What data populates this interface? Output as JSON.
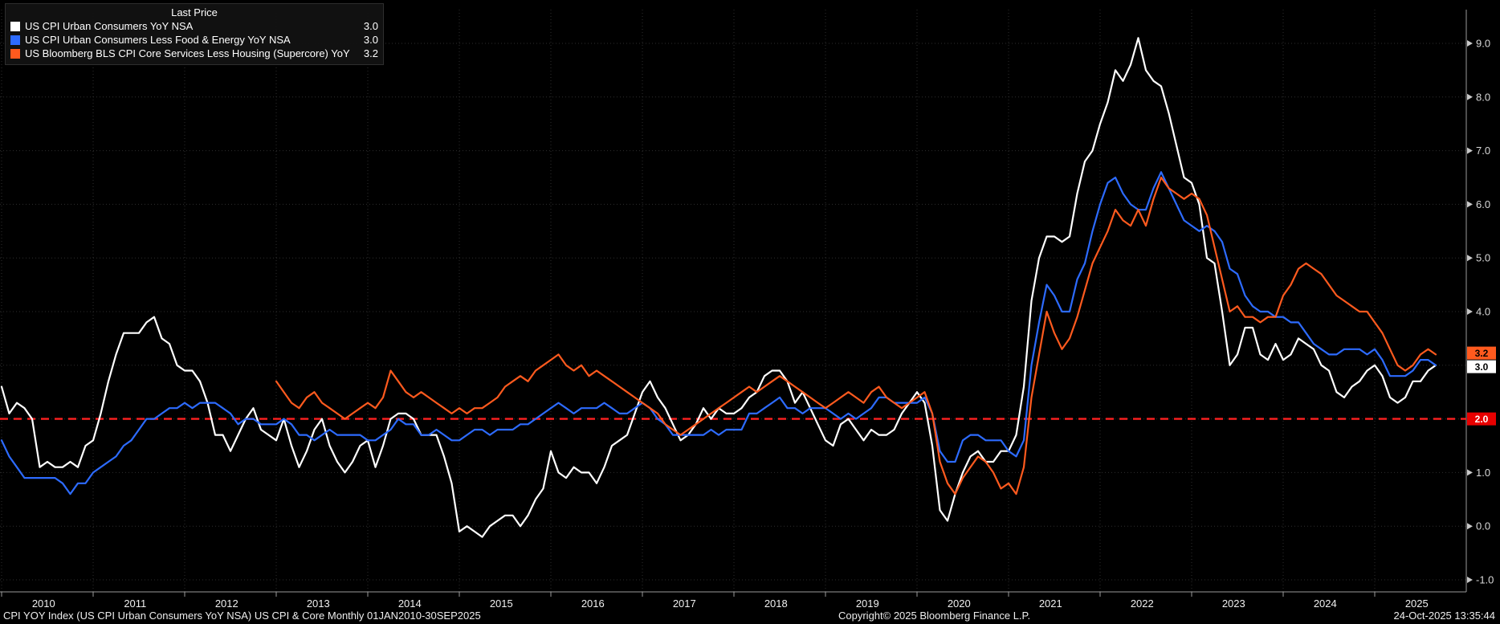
{
  "legend": {
    "header": "Last Price",
    "series": [
      {
        "label": "US CPI Urban Consumers YoY NSA",
        "value": "3.0",
        "color": "#ffffff"
      },
      {
        "label": "US CPI Urban Consumers Less Food & Energy YoY NSA",
        "value": "3.0",
        "color": "#2d6bff"
      },
      {
        "label": "US Bloomberg BLS CPI Core Services Less Housing (Supercore) YoY",
        "value": "3.2",
        "color": "#ff5a1e"
      }
    ]
  },
  "axis": {
    "y_ticks": [
      "9.0",
      "8.0",
      "7.0",
      "6.0",
      "5.0",
      "4.0",
      "3.0",
      "2.0",
      "1.0",
      "0.0",
      "-1.0"
    ],
    "x_ticks": [
      "2010",
      "2011",
      "2012",
      "2013",
      "2014",
      "2015",
      "2016",
      "2017",
      "2018",
      "2019",
      "2020",
      "2021",
      "2022",
      "2023",
      "2024",
      "2025"
    ]
  },
  "price_badges": [
    {
      "value": "3.2",
      "bg": "#ff5a1e",
      "fg": "#000000"
    },
    {
      "value": "3.0",
      "bg": "#ffffff",
      "fg": "#000000"
    },
    {
      "value": "2.0",
      "bg": "#e80000",
      "fg": "#ffffff"
    }
  ],
  "footer": {
    "left": "CPI YOY Index (US CPI Urban Consumers YoY NSA) US CPI & Core Monthly 01JAN2010-30SEP2025",
    "center": "Copyright© 2025 Bloomberg Finance L.P.",
    "right": "24-Oct-2025 13:35:44"
  },
  "chart_data": {
    "type": "line",
    "title": "US CPI & Core Monthly 01JAN2010-30SEP2025",
    "x_start": "2010-01",
    "x_end": "2025-09",
    "frequency": "monthly",
    "ylim": [
      -1.0,
      9.6
    ],
    "grid": true,
    "legend_position": "top-left",
    "reference_line": {
      "value": 2.0,
      "color": "#ff2020",
      "style": "dashed"
    },
    "series": [
      {
        "name": "US CPI Urban Consumers YoY NSA",
        "color": "#ffffff",
        "last_price": 3.0,
        "start_index": 0,
        "values": [
          2.6,
          2.1,
          2.3,
          2.2,
          2.0,
          1.1,
          1.2,
          1.1,
          1.1,
          1.2,
          1.1,
          1.5,
          1.6,
          2.1,
          2.7,
          3.2,
          3.6,
          3.6,
          3.6,
          3.8,
          3.9,
          3.5,
          3.4,
          3.0,
          2.9,
          2.9,
          2.7,
          2.3,
          1.7,
          1.7,
          1.4,
          1.7,
          2.0,
          2.2,
          1.8,
          1.7,
          1.6,
          2.0,
          1.5,
          1.1,
          1.4,
          1.8,
          2.0,
          1.5,
          1.2,
          1.0,
          1.2,
          1.5,
          1.6,
          1.1,
          1.5,
          2.0,
          2.1,
          2.1,
          2.0,
          1.7,
          1.7,
          1.7,
          1.3,
          0.8,
          -0.1,
          0.0,
          -0.1,
          -0.2,
          0.0,
          0.1,
          0.2,
          0.2,
          0.0,
          0.2,
          0.5,
          0.7,
          1.4,
          1.0,
          0.9,
          1.1,
          1.0,
          1.0,
          0.8,
          1.1,
          1.5,
          1.6,
          1.7,
          2.1,
          2.5,
          2.7,
          2.4,
          2.2,
          1.9,
          1.6,
          1.7,
          1.9,
          2.2,
          2.0,
          2.2,
          2.1,
          2.1,
          2.2,
          2.4,
          2.5,
          2.8,
          2.9,
          2.9,
          2.7,
          2.3,
          2.5,
          2.2,
          1.9,
          1.6,
          1.5,
          1.9,
          2.0,
          1.8,
          1.6,
          1.8,
          1.7,
          1.7,
          1.8,
          2.1,
          2.3,
          2.5,
          2.3,
          1.5,
          0.3,
          0.1,
          0.6,
          1.0,
          1.3,
          1.4,
          1.2,
          1.2,
          1.4,
          1.4,
          1.7,
          2.6,
          4.2,
          5.0,
          5.4,
          5.4,
          5.3,
          5.4,
          6.2,
          6.8,
          7.0,
          7.5,
          7.9,
          8.5,
          8.3,
          8.6,
          9.1,
          8.5,
          8.3,
          8.2,
          7.7,
          7.1,
          6.5,
          6.4,
          6.0,
          5.0,
          4.9,
          4.0,
          3.0,
          3.2,
          3.7,
          3.7,
          3.2,
          3.1,
          3.4,
          3.1,
          3.2,
          3.5,
          3.4,
          3.3,
          3.0,
          2.9,
          2.5,
          2.4,
          2.6,
          2.7,
          2.9,
          3.0,
          2.8,
          2.4,
          2.3,
          2.4,
          2.7,
          2.7,
          2.9,
          3.0
        ]
      },
      {
        "name": "US CPI Urban Consumers Less Food & Energy YoY NSA",
        "color": "#2d6bff",
        "last_price": 3.0,
        "start_index": 0,
        "values": [
          1.6,
          1.3,
          1.1,
          0.9,
          0.9,
          0.9,
          0.9,
          0.9,
          0.8,
          0.6,
          0.8,
          0.8,
          1.0,
          1.1,
          1.2,
          1.3,
          1.5,
          1.6,
          1.8,
          2.0,
          2.0,
          2.1,
          2.2,
          2.2,
          2.3,
          2.2,
          2.3,
          2.3,
          2.3,
          2.2,
          2.1,
          1.9,
          2.0,
          2.0,
          1.9,
          1.9,
          1.9,
          2.0,
          1.9,
          1.7,
          1.7,
          1.6,
          1.7,
          1.8,
          1.7,
          1.7,
          1.7,
          1.7,
          1.6,
          1.6,
          1.7,
          1.8,
          2.0,
          1.9,
          1.9,
          1.7,
          1.7,
          1.8,
          1.7,
          1.6,
          1.6,
          1.7,
          1.8,
          1.8,
          1.7,
          1.8,
          1.8,
          1.8,
          1.9,
          1.9,
          2.0,
          2.1,
          2.2,
          2.3,
          2.2,
          2.1,
          2.2,
          2.2,
          2.2,
          2.3,
          2.2,
          2.1,
          2.1,
          2.2,
          2.3,
          2.2,
          2.0,
          1.9,
          1.7,
          1.7,
          1.7,
          1.7,
          1.7,
          1.8,
          1.7,
          1.8,
          1.8,
          1.8,
          2.1,
          2.1,
          2.2,
          2.3,
          2.4,
          2.2,
          2.2,
          2.1,
          2.2,
          2.2,
          2.2,
          2.1,
          2.0,
          2.1,
          2.0,
          2.1,
          2.2,
          2.4,
          2.4,
          2.3,
          2.3,
          2.3,
          2.3,
          2.4,
          2.1,
          1.4,
          1.2,
          1.2,
          1.6,
          1.7,
          1.7,
          1.6,
          1.6,
          1.6,
          1.4,
          1.3,
          1.6,
          3.0,
          3.8,
          4.5,
          4.3,
          4.0,
          4.0,
          4.6,
          4.9,
          5.5,
          6.0,
          6.4,
          6.5,
          6.2,
          6.0,
          5.9,
          5.9,
          6.3,
          6.6,
          6.3,
          6.0,
          5.7,
          5.6,
          5.5,
          5.6,
          5.5,
          5.3,
          4.8,
          4.7,
          4.3,
          4.1,
          4.0,
          4.0,
          3.9,
          3.9,
          3.8,
          3.8,
          3.6,
          3.4,
          3.3,
          3.2,
          3.2,
          3.3,
          3.3,
          3.3,
          3.2,
          3.3,
          3.1,
          2.8,
          2.8,
          2.8,
          2.9,
          3.1,
          3.1,
          3.0
        ]
      },
      {
        "name": "US Bloomberg BLS CPI Core Services Less Housing (Supercore) YoY",
        "color": "#ff5a1e",
        "last_price": 3.2,
        "start_index": 36,
        "values": [
          2.7,
          2.5,
          2.3,
          2.2,
          2.4,
          2.5,
          2.3,
          2.2,
          2.1,
          2.0,
          2.1,
          2.2,
          2.3,
          2.2,
          2.4,
          2.9,
          2.7,
          2.5,
          2.4,
          2.5,
          2.4,
          2.3,
          2.2,
          2.1,
          2.2,
          2.1,
          2.2,
          2.2,
          2.3,
          2.4,
          2.6,
          2.7,
          2.8,
          2.7,
          2.9,
          3.0,
          3.1,
          3.2,
          3.0,
          2.9,
          3.0,
          2.8,
          2.9,
          2.8,
          2.7,
          2.6,
          2.5,
          2.4,
          2.3,
          2.2,
          2.1,
          1.9,
          1.8,
          1.7,
          1.8,
          1.9,
          2.0,
          2.1,
          2.2,
          2.3,
          2.4,
          2.5,
          2.6,
          2.5,
          2.6,
          2.7,
          2.8,
          2.7,
          2.6,
          2.5,
          2.4,
          2.3,
          2.2,
          2.3,
          2.4,
          2.5,
          2.4,
          2.3,
          2.5,
          2.6,
          2.4,
          2.3,
          2.2,
          2.3,
          2.4,
          2.5,
          2.1,
          1.2,
          0.8,
          0.6,
          0.9,
          1.1,
          1.3,
          1.2,
          1.0,
          0.7,
          0.8,
          0.6,
          1.1,
          2.4,
          3.2,
          4.0,
          3.6,
          3.3,
          3.5,
          3.9,
          4.4,
          4.9,
          5.2,
          5.5,
          5.9,
          5.7,
          5.6,
          5.9,
          5.6,
          6.1,
          6.5,
          6.3,
          6.2,
          6.1,
          6.2,
          6.1,
          5.8,
          5.2,
          4.6,
          4.0,
          4.1,
          3.9,
          3.9,
          3.8,
          3.9,
          3.9,
          4.3,
          4.5,
          4.8,
          4.9,
          4.8,
          4.7,
          4.5,
          4.3,
          4.2,
          4.1,
          4.0,
          4.0,
          3.8,
          3.6,
          3.3,
          3.0,
          2.9,
          3.0,
          3.2,
          3.3,
          3.2
        ]
      }
    ]
  }
}
